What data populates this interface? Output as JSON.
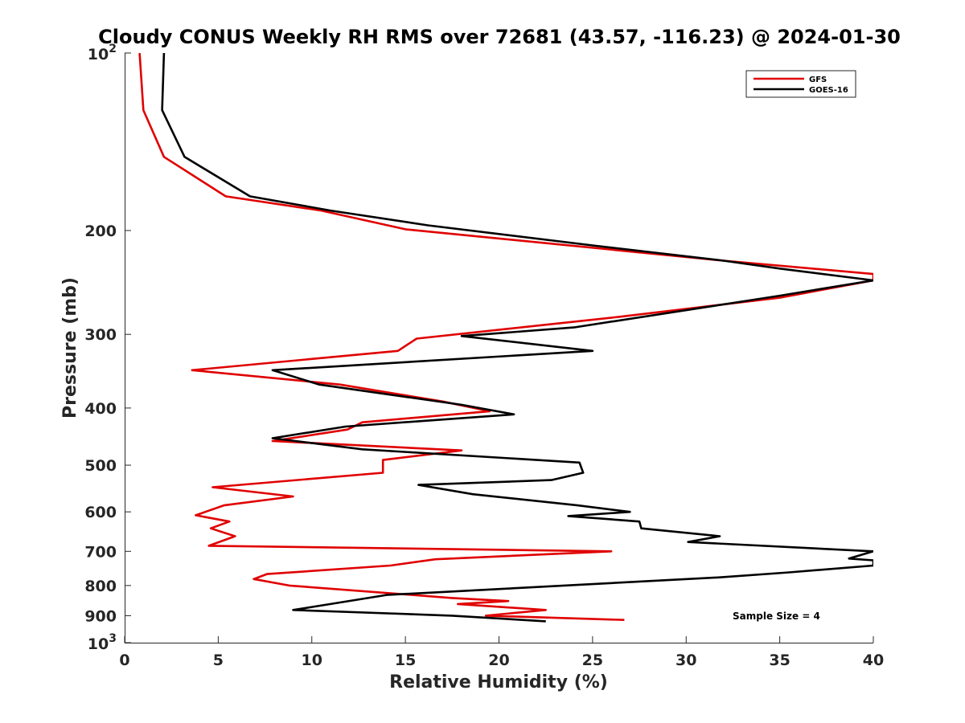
{
  "chart_data": {
    "type": "line",
    "title": "Cloudy CONUS Weekly RH RMS over 72681 (43.57, -116.23) @ 2024-01-30",
    "xlabel": "Relative Humidity (%)",
    "ylabel": "Pressure (mb)",
    "xlim": [
      0,
      40
    ],
    "ylim": [
      100,
      1000
    ],
    "y_scale": "log",
    "y_reversed": true,
    "x_ticks": [
      0,
      5,
      10,
      15,
      20,
      25,
      30,
      35,
      40
    ],
    "x_tick_labels": [
      "0",
      "5",
      "10",
      "15",
      "20",
      "25",
      "30",
      "35",
      "40"
    ],
    "y_ticks": [
      200,
      300,
      400,
      500,
      600,
      700,
      800,
      900
    ],
    "y_tick_labels": [
      "200",
      "300",
      "400",
      "500",
      "600",
      "700",
      "800",
      "900"
    ],
    "y_end_labels": [
      {
        "value": 100,
        "base": "10",
        "exp": "2"
      },
      {
        "value": 1000,
        "base": "10",
        "exp": "3"
      }
    ],
    "legend_position": "top-right",
    "annotation": "Sample Size = 4",
    "series": [
      {
        "name": "GFS",
        "color": "#e00000",
        "points": [
          [
            0.8,
            100
          ],
          [
            1.0,
            125
          ],
          [
            2.1,
            150
          ],
          [
            5.4,
            175
          ],
          [
            10.5,
            185
          ],
          [
            15.0,
            199
          ],
          [
            32.0,
            225
          ],
          [
            40.0,
            237
          ],
          [
            40.0,
            243
          ],
          [
            35.0,
            260
          ],
          [
            26.5,
            280
          ],
          [
            15.6,
            305
          ],
          [
            14.6,
            320
          ],
          [
            3.6,
            345
          ],
          [
            11.5,
            365
          ],
          [
            17.0,
            390
          ],
          [
            19.5,
            405
          ],
          [
            12.7,
            423
          ],
          [
            11.9,
            435
          ],
          [
            7.9,
            455
          ],
          [
            18.0,
            472
          ],
          [
            13.8,
            490
          ],
          [
            13.8,
            500
          ],
          [
            13.8,
            515
          ],
          [
            4.7,
            545
          ],
          [
            9.0,
            565
          ],
          [
            5.3,
            585
          ],
          [
            3.8,
            608
          ],
          [
            5.6,
            623
          ],
          [
            4.6,
            640
          ],
          [
            5.9,
            660
          ],
          [
            4.5,
            685
          ],
          [
            26.0,
            700
          ],
          [
            16.6,
            722
          ],
          [
            14.2,
            740
          ],
          [
            7.6,
            765
          ],
          [
            6.9,
            780
          ],
          [
            8.8,
            800
          ],
          [
            17.5,
            840
          ],
          [
            20.5,
            850
          ],
          [
            17.8,
            860
          ],
          [
            22.5,
            880
          ],
          [
            19.3,
            900
          ],
          [
            26.7,
            915
          ]
        ]
      },
      {
        "name": "GOES-16",
        "color": "#000000",
        "points": [
          [
            2.1,
            100
          ],
          [
            2.0,
            125
          ],
          [
            3.2,
            150
          ],
          [
            6.7,
            175
          ],
          [
            11.0,
            185
          ],
          [
            16.2,
            196
          ],
          [
            25.0,
            212
          ],
          [
            32.0,
            225
          ],
          [
            35.0,
            232
          ],
          [
            40.0,
            243
          ],
          [
            35.0,
            258
          ],
          [
            24.0,
            292
          ],
          [
            18.0,
            302
          ],
          [
            25.0,
            320
          ],
          [
            7.9,
            345
          ],
          [
            10.4,
            365
          ],
          [
            18.0,
            395
          ],
          [
            20.8,
            410
          ],
          [
            11.8,
            430
          ],
          [
            7.9,
            450
          ],
          [
            12.7,
            470
          ],
          [
            24.3,
            495
          ],
          [
            24.5,
            515
          ],
          [
            22.8,
            530
          ],
          [
            15.7,
            540
          ],
          [
            18.6,
            560
          ],
          [
            24.2,
            585
          ],
          [
            27.0,
            600
          ],
          [
            23.7,
            610
          ],
          [
            27.5,
            623
          ],
          [
            27.6,
            640
          ],
          [
            31.8,
            660
          ],
          [
            30.1,
            675
          ],
          [
            40.0,
            700
          ],
          [
            38.7,
            720
          ],
          [
            40.0,
            725
          ],
          [
            40.0,
            740
          ],
          [
            35.5,
            760
          ],
          [
            31.8,
            775
          ],
          [
            14.0,
            830
          ],
          [
            11.0,
            860
          ],
          [
            9.0,
            880
          ],
          [
            17.5,
            900
          ],
          [
            22.5,
            920
          ]
        ]
      }
    ]
  }
}
